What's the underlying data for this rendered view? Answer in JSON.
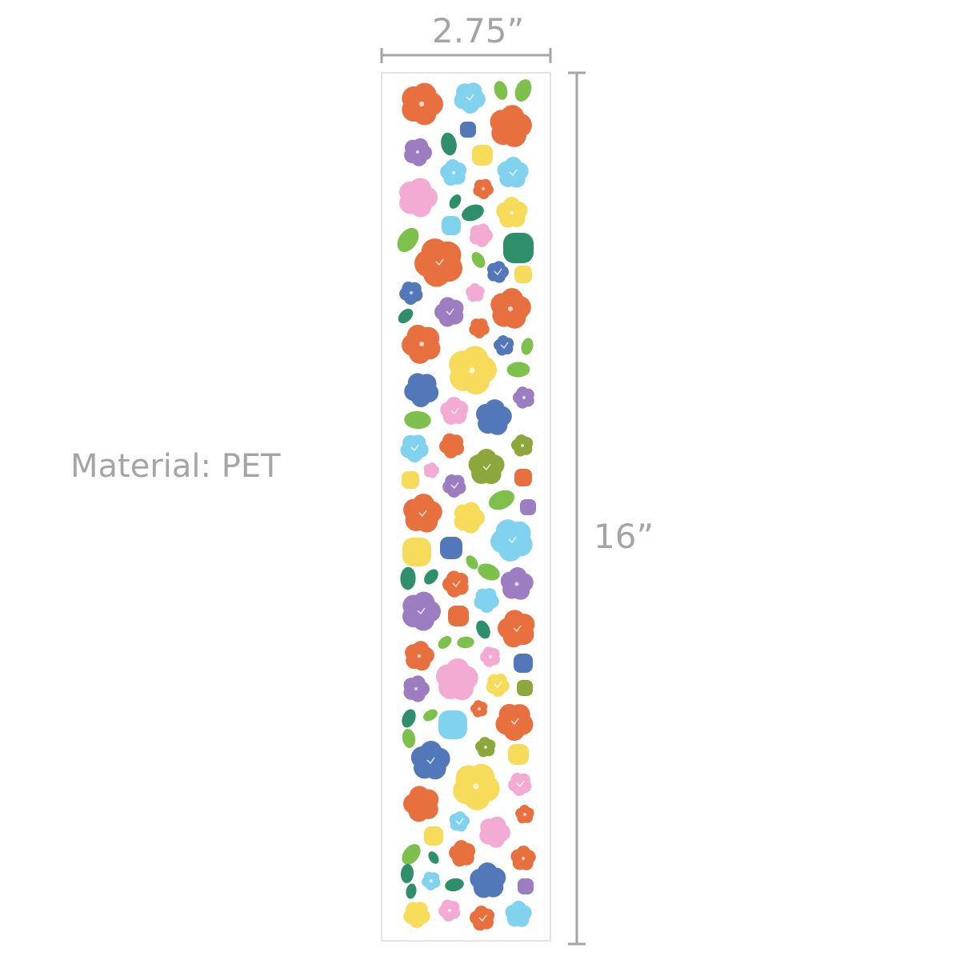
{
  "dimensions": {
    "width": "2.75”",
    "height": "16”"
  },
  "material": "Material: PET",
  "colors": {
    "dimension_line": "#a5a5a5",
    "orange": "#e8703e",
    "sky": "#80d2ee",
    "green": "#7dc04b",
    "darkgreen": "#2f8f6b",
    "purple": "#9c7dc1",
    "pink": "#f3abd3",
    "yellow": "#f7dc5b",
    "navy": "#5378b9",
    "olive": "#8ca73b"
  }
}
